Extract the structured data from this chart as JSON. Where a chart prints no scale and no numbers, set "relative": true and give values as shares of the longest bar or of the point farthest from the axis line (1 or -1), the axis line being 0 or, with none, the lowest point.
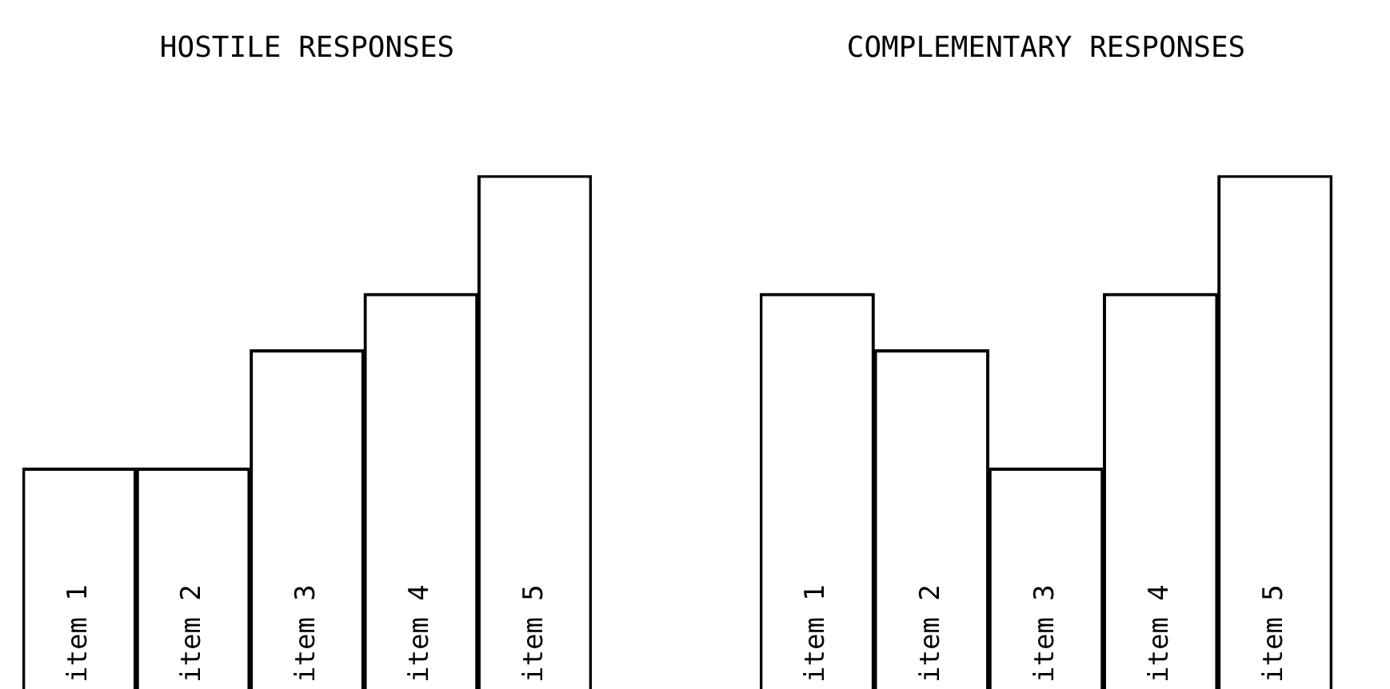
{
  "chart_data": [
    {
      "type": "bar",
      "title": "HOSTILE RESPONSES",
      "categories": [
        "item 1",
        "item 2",
        "item 3",
        "item 4",
        "item 5"
      ],
      "relative": true,
      "values": [
        0.43,
        0.43,
        0.66,
        0.77,
        1
      ],
      "color": "#ffffff"
    },
    {
      "type": "bar",
      "title": "COMPLEMENTARY RESPONSES",
      "categories": [
        "item 1",
        "item 2",
        "item 3",
        "item 4",
        "item 5"
      ],
      "relative": true,
      "values": [
        0.77,
        0.66,
        0.43,
        0.77,
        1
      ],
      "color": "#ffffff"
    }
  ]
}
